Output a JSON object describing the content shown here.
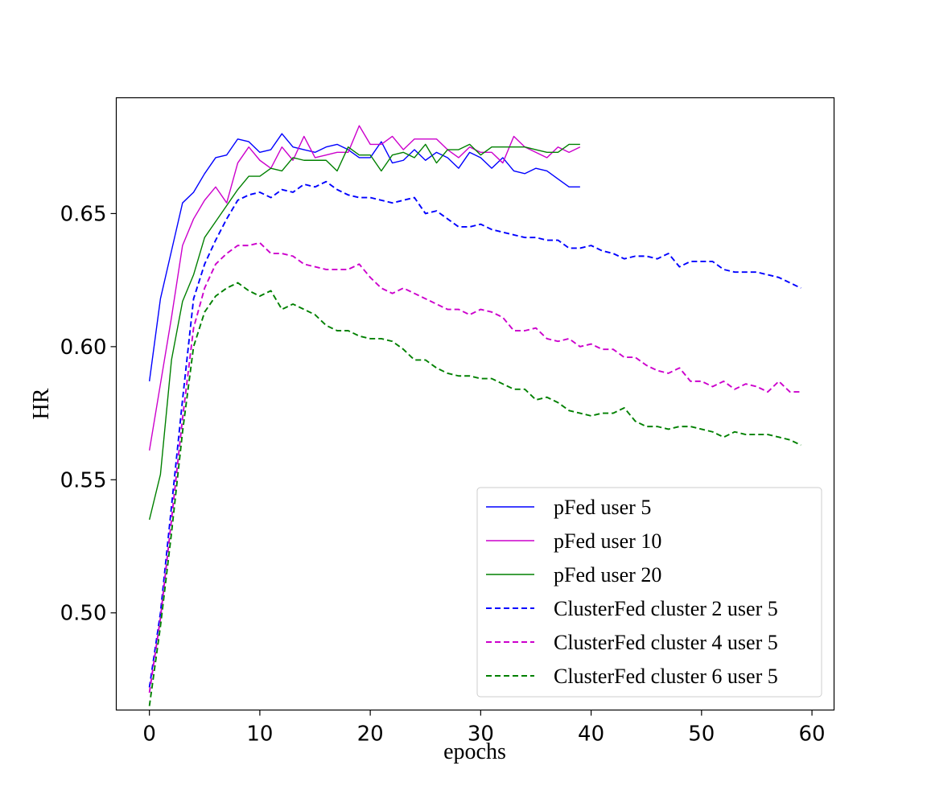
{
  "chart_data": {
    "type": "line",
    "title": "",
    "xlabel": "epochs",
    "ylabel": "HR",
    "xlim": [
      -3,
      62
    ],
    "ylim": [
      0.4635,
      0.6935
    ],
    "xticks": [
      0,
      10,
      20,
      30,
      40,
      50,
      60
    ],
    "xtick_labels": [
      "0",
      "10",
      "20",
      "30",
      "40",
      "50",
      "60"
    ],
    "yticks": [
      0.5,
      0.55,
      0.6,
      0.65
    ],
    "ytick_labels": [
      "0.50",
      "0.55",
      "0.60",
      "0.65"
    ],
    "grid": false,
    "legend_position": "lower-right",
    "series": [
      {
        "name": "pFed user 5",
        "color": "#0000ff",
        "dash": "solid",
        "values": [
          0.587,
          0.618,
          0.636,
          0.654,
          0.658,
          0.665,
          0.671,
          0.672,
          0.678,
          0.677,
          0.673,
          0.674,
          0.68,
          0.675,
          0.674,
          0.673,
          0.675,
          0.676,
          0.674,
          0.671,
          0.671,
          0.677,
          0.669,
          0.67,
          0.674,
          0.67,
          0.673,
          0.671,
          0.667,
          0.673,
          0.671,
          0.667,
          0.671,
          0.666,
          0.665,
          0.667,
          0.666,
          0.663,
          0.66,
          0.66
        ]
      },
      {
        "name": "pFed user 10",
        "color": "#cc00cc",
        "dash": "solid",
        "values": [
          0.561,
          0.586,
          0.611,
          0.638,
          0.648,
          0.655,
          0.66,
          0.654,
          0.669,
          0.675,
          0.67,
          0.667,
          0.675,
          0.67,
          0.679,
          0.671,
          0.672,
          0.673,
          0.673,
          0.683,
          0.676,
          0.676,
          0.679,
          0.674,
          0.678,
          0.678,
          0.678,
          0.674,
          0.671,
          0.675,
          0.673,
          0.673,
          0.669,
          0.679,
          0.675,
          0.673,
          0.671,
          0.675,
          0.673,
          0.675
        ]
      },
      {
        "name": "pFed user 20",
        "color": "#008000",
        "dash": "solid",
        "values": [
          0.535,
          0.552,
          0.595,
          0.617,
          0.627,
          0.641,
          0.647,
          0.653,
          0.659,
          0.664,
          0.664,
          0.667,
          0.666,
          0.671,
          0.67,
          0.67,
          0.67,
          0.666,
          0.675,
          0.672,
          0.672,
          0.666,
          0.672,
          0.673,
          0.671,
          0.676,
          0.669,
          0.674,
          0.674,
          0.676,
          0.672,
          0.675,
          0.675,
          0.675,
          0.675,
          0.674,
          0.673,
          0.673,
          0.676,
          0.676
        ]
      },
      {
        "name": "ClusterFed cluster 2 user 5",
        "color": "#0000ff",
        "dash": "dashed",
        "values": [
          0.472,
          0.5,
          0.54,
          0.58,
          0.618,
          0.631,
          0.64,
          0.648,
          0.655,
          0.657,
          0.658,
          0.656,
          0.659,
          0.658,
          0.661,
          0.66,
          0.662,
          0.659,
          0.657,
          0.656,
          0.656,
          0.655,
          0.654,
          0.655,
          0.656,
          0.65,
          0.651,
          0.648,
          0.645,
          0.645,
          0.646,
          0.644,
          0.643,
          0.642,
          0.641,
          0.641,
          0.64,
          0.64,
          0.637,
          0.637,
          0.638,
          0.636,
          0.635,
          0.633,
          0.634,
          0.634,
          0.633,
          0.635,
          0.63,
          0.632,
          0.632,
          0.632,
          0.629,
          0.628,
          0.628,
          0.628,
          0.627,
          0.626,
          0.624,
          0.622
        ]
      },
      {
        "name": "ClusterFed cluster 4 user 5",
        "color": "#cc00cc",
        "dash": "dashed",
        "values": [
          0.47,
          0.498,
          0.535,
          0.573,
          0.607,
          0.622,
          0.631,
          0.635,
          0.638,
          0.638,
          0.639,
          0.635,
          0.635,
          0.634,
          0.631,
          0.63,
          0.629,
          0.629,
          0.629,
          0.631,
          0.626,
          0.622,
          0.62,
          0.622,
          0.62,
          0.618,
          0.616,
          0.614,
          0.614,
          0.612,
          0.614,
          0.613,
          0.611,
          0.606,
          0.606,
          0.607,
          0.603,
          0.602,
          0.603,
          0.6,
          0.601,
          0.599,
          0.599,
          0.596,
          0.596,
          0.593,
          0.591,
          0.59,
          0.592,
          0.587,
          0.587,
          0.585,
          0.587,
          0.584,
          0.586,
          0.585,
          0.583,
          0.587,
          0.583,
          0.583
        ]
      },
      {
        "name": "ClusterFed cluster 6 user 5",
        "color": "#008000",
        "dash": "dashed",
        "values": [
          0.465,
          0.495,
          0.53,
          0.568,
          0.6,
          0.613,
          0.619,
          0.622,
          0.624,
          0.621,
          0.619,
          0.621,
          0.614,
          0.616,
          0.614,
          0.612,
          0.608,
          0.606,
          0.606,
          0.604,
          0.603,
          0.603,
          0.602,
          0.599,
          0.595,
          0.595,
          0.592,
          0.59,
          0.589,
          0.589,
          0.588,
          0.588,
          0.586,
          0.584,
          0.584,
          0.58,
          0.581,
          0.579,
          0.576,
          0.575,
          0.574,
          0.575,
          0.575,
          0.577,
          0.572,
          0.57,
          0.57,
          0.569,
          0.57,
          0.57,
          0.569,
          0.568,
          0.566,
          0.568,
          0.567,
          0.567,
          0.567,
          0.566,
          0.565,
          0.563
        ]
      }
    ]
  }
}
